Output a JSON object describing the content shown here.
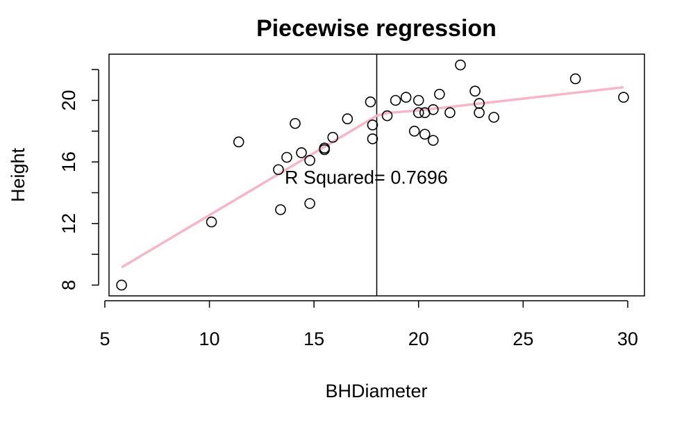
{
  "chart_data": {
    "type": "scatter",
    "title": "Piecewise regression",
    "xlabel": "BHDiameter",
    "ylabel": "Height",
    "xlim": [
      5.2,
      30.8
    ],
    "ylim": [
      7.3,
      23.0
    ],
    "xticks": [
      5,
      10,
      15,
      20,
      25,
      30
    ],
    "yticks": [
      8,
      10,
      12,
      14,
      16,
      18,
      20,
      22
    ],
    "ytick_labels": [
      "8",
      "",
      "12",
      "",
      "16",
      "",
      "20",
      ""
    ],
    "grid": false,
    "legend": "none",
    "breakpoint_x": 18,
    "annotation": "R Squared= 0.7696",
    "annotation_pos": {
      "x": 17.5,
      "y": 15.0
    },
    "colors": {
      "points": "#000000",
      "fit_line": "#f7b6c8",
      "breakpoint_line": "#000000",
      "box": "#000000"
    },
    "points": [
      {
        "x": 5.8,
        "y": 8.0
      },
      {
        "x": 10.1,
        "y": 12.1
      },
      {
        "x": 11.4,
        "y": 17.3
      },
      {
        "x": 13.3,
        "y": 15.5
      },
      {
        "x": 13.4,
        "y": 12.9
      },
      {
        "x": 13.7,
        "y": 16.3
      },
      {
        "x": 14.1,
        "y": 18.5
      },
      {
        "x": 14.4,
        "y": 16.6
      },
      {
        "x": 14.8,
        "y": 16.1
      },
      {
        "x": 14.8,
        "y": 13.3
      },
      {
        "x": 15.5,
        "y": 16.8
      },
      {
        "x": 15.5,
        "y": 16.9
      },
      {
        "x": 15.9,
        "y": 17.6
      },
      {
        "x": 16.6,
        "y": 18.8
      },
      {
        "x": 17.7,
        "y": 19.9
      },
      {
        "x": 17.8,
        "y": 18.4
      },
      {
        "x": 17.8,
        "y": 17.5
      },
      {
        "x": 18.5,
        "y": 19.0
      },
      {
        "x": 18.9,
        "y": 20.0
      },
      {
        "x": 19.4,
        "y": 20.2
      },
      {
        "x": 19.8,
        "y": 18.0
      },
      {
        "x": 20.0,
        "y": 20.0
      },
      {
        "x": 20.0,
        "y": 19.2
      },
      {
        "x": 20.3,
        "y": 19.2
      },
      {
        "x": 20.3,
        "y": 17.8
      },
      {
        "x": 20.7,
        "y": 19.4
      },
      {
        "x": 20.7,
        "y": 17.4
      },
      {
        "x": 21.0,
        "y": 20.4
      },
      {
        "x": 21.5,
        "y": 19.2
      },
      {
        "x": 22.0,
        "y": 22.3
      },
      {
        "x": 22.7,
        "y": 20.6
      },
      {
        "x": 22.9,
        "y": 19.8
      },
      {
        "x": 22.9,
        "y": 19.2
      },
      {
        "x": 23.6,
        "y": 18.9
      },
      {
        "x": 27.5,
        "y": 21.4
      },
      {
        "x": 29.8,
        "y": 20.2
      }
    ],
    "fit_line": [
      {
        "x": 5.8,
        "y": 9.15
      },
      {
        "x": 18.0,
        "y": 19.0
      },
      {
        "x": 18.5,
        "y": 19.18
      },
      {
        "x": 20.0,
        "y": 19.35
      },
      {
        "x": 22.0,
        "y": 19.65
      },
      {
        "x": 29.8,
        "y": 20.85
      }
    ]
  }
}
